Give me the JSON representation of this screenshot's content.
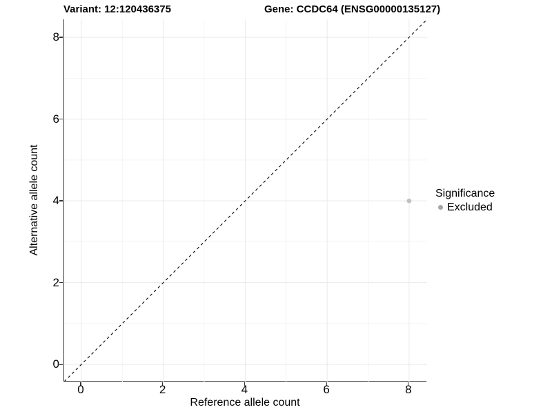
{
  "titles": {
    "variant": "Variant: 12:120436375",
    "gene": "Gene: CCDC64 (ENSG00000135127)"
  },
  "chart_data": {
    "type": "scatter",
    "xlabel": "Reference allele count",
    "ylabel": "Alternative allele count",
    "xlim": [
      -0.42,
      8.44
    ],
    "ylim": [
      -0.42,
      8.44
    ],
    "x_ticks": [
      0,
      2,
      4,
      6,
      8
    ],
    "y_ticks": [
      0,
      2,
      4,
      6,
      8
    ],
    "x_minor": [
      1,
      3,
      5,
      7
    ],
    "y_minor": [
      1,
      3,
      5,
      7
    ],
    "grid": "on",
    "points": [
      {
        "x": 8,
        "y": 4,
        "series": "Excluded"
      }
    ],
    "reference_line": {
      "equation": "y = x",
      "style": "dashed",
      "color": "#000000"
    },
    "point_radius": 3.4,
    "colors": {
      "point": "#c0c0c0",
      "legend_key": "#a6a6a6",
      "axis_line": "#333333",
      "grid_major": "#e9e9e9",
      "grid_minor": "#f4f4f4"
    },
    "legend": {
      "title": "Significance",
      "position": "right",
      "items": [
        {
          "label": "Excluded",
          "color": "#a6a6a6"
        }
      ]
    }
  }
}
